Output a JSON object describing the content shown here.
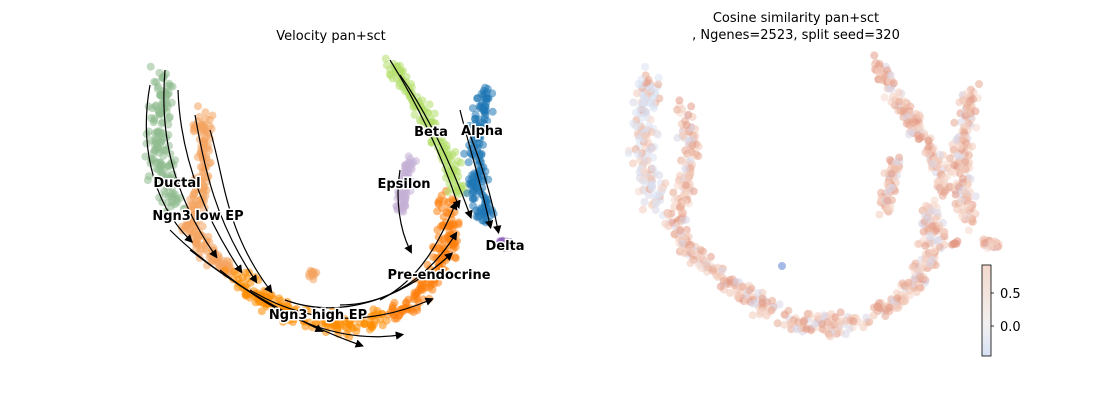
{
  "chart_data": [
    {
      "type": "scatter",
      "title": "Velocity pan+sct",
      "xlabel": "",
      "ylabel": "",
      "grid": false,
      "axes_visible": false,
      "overlay": "velocity streamlines (black arrows)",
      "clusters": [
        {
          "name": "Ductal",
          "color": "#8fbc8f"
        },
        {
          "name": "Ngn3 low EP",
          "color": "#f4a460"
        },
        {
          "name": "Ngn3 high EP",
          "color": "#ff8c00"
        },
        {
          "name": "Pre-endocrine",
          "color": "#ff7f0e"
        },
        {
          "name": "Beta",
          "color": "#b3de69"
        },
        {
          "name": "Alpha",
          "color": "#1f77b4"
        },
        {
          "name": "Epsilon",
          "color": "#c5b0d5"
        },
        {
          "name": "Delta",
          "color": "#9467bd"
        }
      ]
    },
    {
      "type": "scatter",
      "title_line1": "Cosine similarity pan+sct",
      "title_line2": ", Ngenes=2523, split seed=320",
      "xlabel": "",
      "ylabel": "",
      "grid": false,
      "axes_visible": false,
      "colorbar": {
        "colormap": "coolwarm",
        "range": [
          -0.45,
          0.95
        ],
        "ticks": [
          0.0,
          0.5
        ],
        "tick_labels": [
          "0.0",
          "0.5"
        ]
      }
    }
  ]
}
